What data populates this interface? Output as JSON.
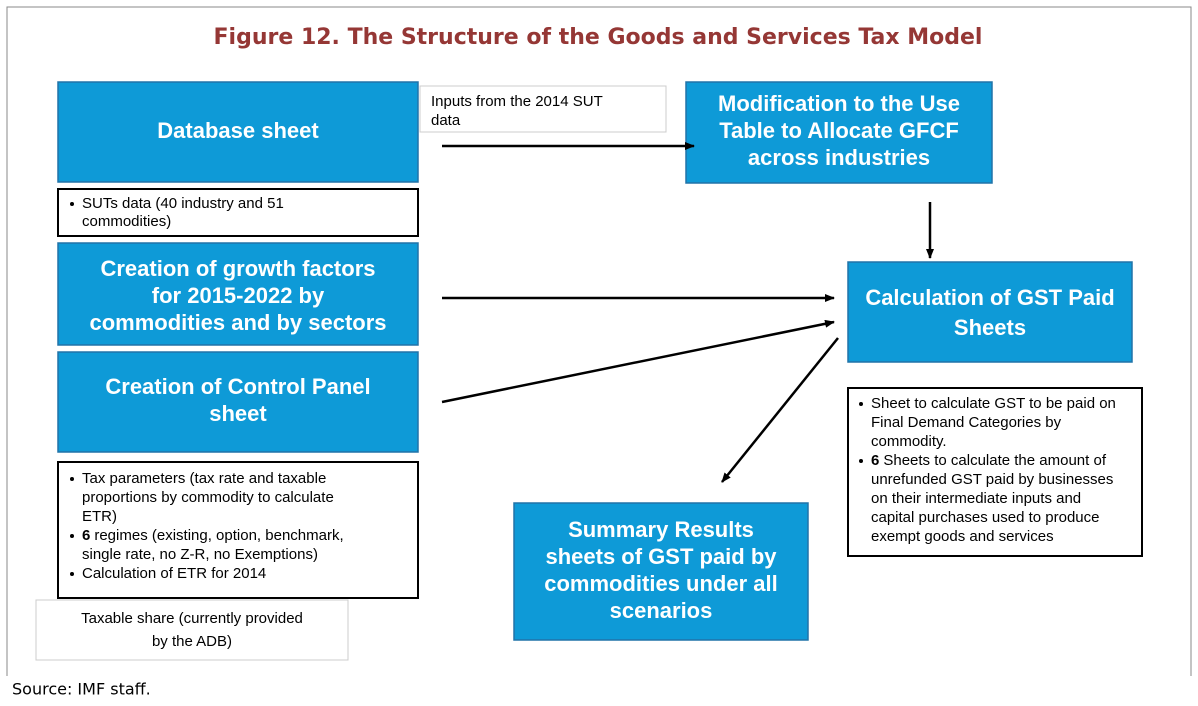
{
  "title": "Figure 12. The Structure of the Goods and Services Tax Model",
  "database_sheet": {
    "lines": [
      "Database sheet"
    ]
  },
  "inputs_note": {
    "lines": [
      "Inputs from the 2014 SUT",
      "data"
    ]
  },
  "modification": {
    "lines": [
      "Modification to the Use",
      "Table to Allocate GFCF",
      "across industries"
    ]
  },
  "suts_box": {
    "bullets": [
      {
        "lines": [
          "SUTs data (40 industry and 51",
          "commodities)"
        ]
      }
    ]
  },
  "growth_factors": {
    "lines": [
      "Creation of growth factors",
      "for 2015-2022 by",
      "commodities and by sectors"
    ]
  },
  "control_panel": {
    "lines": [
      "Creation of Control Panel",
      "sheet"
    ]
  },
  "control_bullets": {
    "bullets": [
      {
        "lines": [
          "Tax parameters (tax rate and taxable",
          "proportions by commodity to calculate",
          "ETR)"
        ]
      },
      {
        "bold": "6",
        "lines": [
          "regimes (existing, option, benchmark,",
          "single rate, no Z-R, no Exemptions)"
        ]
      },
      {
        "lines": [
          "Calculation of ETR for 2014"
        ]
      }
    ]
  },
  "taxable_share": {
    "lines": [
      "Taxable share (currently provided",
      "by the ADB)"
    ]
  },
  "gst_paid": {
    "lines": [
      "Calculation of GST Paid",
      "Sheets"
    ]
  },
  "gst_bullets": {
    "bullets": [
      {
        "lines": [
          "Sheet to calculate GST to be paid on",
          "Final Demand Categories by",
          "commodity."
        ]
      },
      {
        "bold": "6",
        "lines": [
          "Sheets to calculate the amount of",
          "unrefunded GST paid by businesses",
          "on their intermediate inputs and",
          "capital purchases used to produce",
          "exempt goods and services"
        ]
      }
    ]
  },
  "summary": {
    "lines": [
      "Summary Results",
      "sheets of GST paid by",
      "commodities under all",
      "scenarios"
    ]
  },
  "source": "Source: IMF staff."
}
